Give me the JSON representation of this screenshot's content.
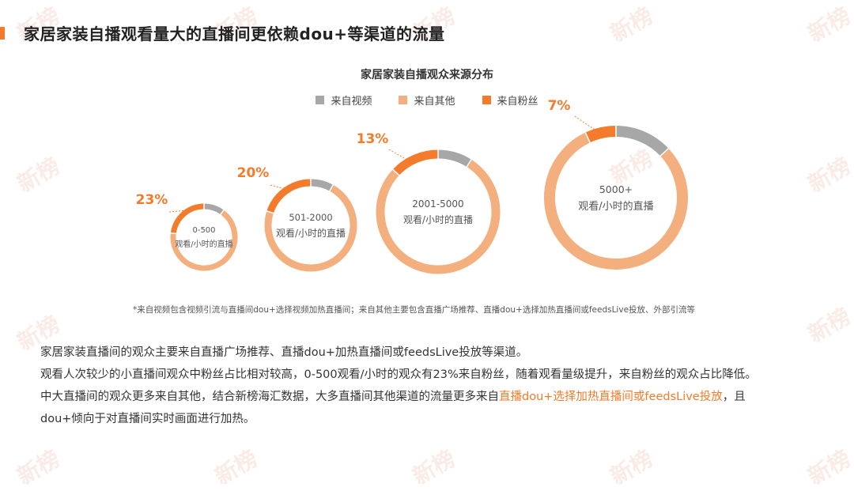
{
  "page": {
    "title": "家居家装自播观看量大的直播间更依赖dou+等渠道的流量",
    "watermark_text": "新榜"
  },
  "colors": {
    "accent": "#f47b2b",
    "video": "#a7a7a7",
    "other": "#f3b07e",
    "fans": "#f47b2b"
  },
  "chart_data": {
    "type": "pie",
    "title": "家居家装自播观众来源分布",
    "legend": [
      "来自视频",
      "来自其他",
      "来自粉丝"
    ],
    "legend_position": "top-center",
    "charts": [
      {
        "label_line1": "0-500",
        "label_line2": "观看/小时的直播",
        "fans_pct_label": "23%",
        "values": {
          "来自粉丝": 23,
          "来自视频": 10,
          "来自其他": 67
        }
      },
      {
        "label_line1": "501-2000",
        "label_line2": "观看/小时的直播",
        "fans_pct_label": "20%",
        "values": {
          "来自粉丝": 20,
          "来自视频": 8,
          "来自其他": 72
        }
      },
      {
        "label_line1": "2001-5000",
        "label_line2": "观看/小时的直播",
        "fans_pct_label": "13%",
        "values": {
          "来自粉丝": 13,
          "来自视频": 9,
          "来自其他": 78
        }
      },
      {
        "label_line1": "5000+",
        "label_line2": "观看/小时的直播",
        "fans_pct_label": "7%",
        "values": {
          "来自粉丝": 7,
          "来自视频": 13,
          "来自其他": 80
        }
      }
    ]
  },
  "footnote": "*来自视频包含视频引流与直播间dou+选择视频加热直播间；来自其他主要包含直播广场推荐、直播dou+选择加热直播间或feedsLive投放、外部引流等",
  "body": {
    "line1": "家居家装直播间的观众主要来自直播广场推荐、直播dou+加热直播间或feedsLive投放等渠道。",
    "line2": "观看人次较少的小直播间观众中粉丝占比相对较高，0-500观看/小时的观众有23%来自粉丝，随着观看量级提升，来自粉丝的观众占比降低。",
    "line3_pre": "中大直播间的观众更多来自其他，结合新榜海汇数据，大多直播间其他渠道的流量更多来自",
    "line3_highlight": "直播dou+选择加热直播间或feedsLive投放",
    "line3_post": "，且",
    "line4": "dou+倾向于对直播间实时画面进行加热。"
  }
}
